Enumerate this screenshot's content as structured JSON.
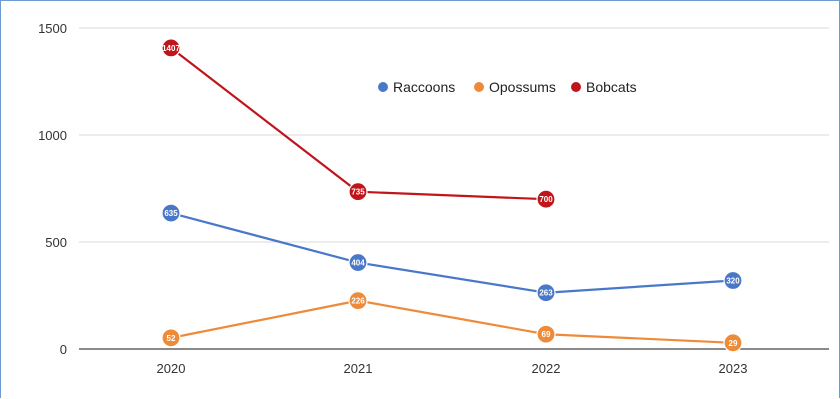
{
  "chart_data": {
    "type": "line",
    "categories": [
      "2020",
      "2021",
      "2022",
      "2023"
    ],
    "ylim": [
      0,
      1500
    ],
    "yticks": [
      0,
      500,
      1000,
      1500
    ],
    "grid": true,
    "legend_position": "top-center",
    "series": [
      {
        "name": "Raccoons",
        "color": "#4a78c9",
        "values": [
          635,
          404,
          263,
          320
        ]
      },
      {
        "name": "Opossums",
        "color": "#ee8b3a",
        "values": [
          52,
          226,
          69,
          29
        ]
      },
      {
        "name": "Bobcats",
        "color": "#c0151b",
        "values": [
          1407,
          735,
          700,
          null
        ]
      }
    ]
  }
}
